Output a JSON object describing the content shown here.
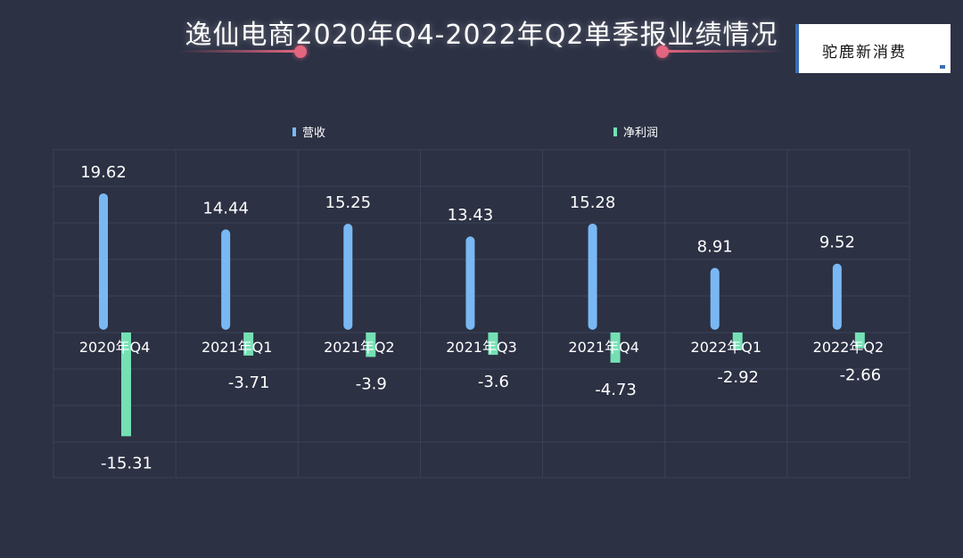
{
  "title": "逸仙电商2020年Q4-2022年Q2单季报业绩情况",
  "watermark": "驼鹿新消费",
  "colors": {
    "background": "#2c3144",
    "revenue": "#79b8f3",
    "net_profit": "#74e0b4",
    "grid": "#3c4258",
    "accent": "#e4657f"
  },
  "chart_data": {
    "type": "bar",
    "categories": [
      "2020年Q4",
      "2021年Q1",
      "2021年Q2",
      "2021年Q3",
      "2021年Q4",
      "2022年Q1",
      "2022年Q2"
    ],
    "series": [
      {
        "name": "营收",
        "values": [
          19.62,
          14.44,
          15.25,
          13.43,
          15.28,
          8.91,
          9.52
        ]
      },
      {
        "name": "净利润",
        "values": [
          -15.31,
          -3.71,
          -3.9,
          -3.6,
          -4.73,
          -2.92,
          -2.66
        ]
      }
    ],
    "value_labels": {
      "revenue": [
        "19.62",
        "14.44",
        "15.25",
        "13.43",
        "15.28",
        "8.91",
        "9.52"
      ],
      "net_profit": [
        "-15.31",
        "-3.71",
        "-3.9",
        "-3.6",
        "-4.73",
        "-2.92",
        "-2.66"
      ]
    },
    "ylim": [
      -20,
      25
    ],
    "grid": true,
    "legend_position": "top"
  }
}
